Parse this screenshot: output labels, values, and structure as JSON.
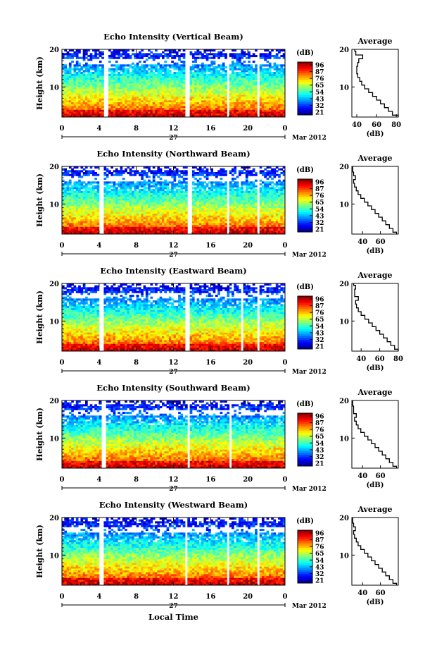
{
  "figure": {
    "xlabel": "Local Time",
    "date_label": "Mar 2012",
    "day_label": "27",
    "colorbar_unit": "(dB)",
    "colorbar_ticks": [
      "96",
      "87",
      "76",
      "65",
      "54",
      "43",
      "32",
      "21"
    ],
    "avg_title": "Average",
    "avg_xlabel": "(dB)",
    "x_ticks": [
      "0",
      "4",
      "8",
      "12",
      "16",
      "20",
      "0"
    ],
    "y_ticks": [
      "20",
      "10"
    ],
    "ylabel": "Height (km)"
  },
  "chart_data": [
    {
      "type": "heatmap",
      "title": "Echo Intensity (Vertical Beam)",
      "xlabel": "",
      "ylabel": "Height (km)",
      "xlim": [
        0,
        24
      ],
      "ylim": [
        2,
        20
      ],
      "colorbar_ticks": [
        96,
        87,
        76,
        65,
        54,
        43,
        32,
        21
      ],
      "colorbar_ticks_text": [
        "96",
        "87",
        "76",
        "65",
        "54",
        "43",
        "32",
        "21"
      ],
      "gaps_hours": [
        [
          4.6,
          5.1
        ],
        [
          13.3,
          13.8
        ],
        [
          17.8,
          18.0
        ],
        [
          21.0,
          21.2
        ],
        [
          23.4,
          23.6
        ]
      ],
      "average": {
        "x_ticks": [
          "40",
          "60",
          "80"
        ],
        "xlim": [
          35,
          82
        ],
        "heights": [
          2,
          3,
          4,
          5,
          6,
          7,
          8,
          9,
          10,
          11,
          12,
          13,
          14,
          15,
          16,
          17,
          18,
          19,
          20
        ],
        "values": [
          82,
          76,
          72,
          68,
          64,
          60,
          56,
          52,
          48,
          45,
          43,
          41,
          40,
          40,
          41,
          42,
          46,
          39,
          38
        ]
      }
    },
    {
      "type": "heatmap",
      "title": "Echo Intensity (Northward Beam)",
      "xlabel": "",
      "ylabel": "Height (km)",
      "xlim": [
        0,
        24
      ],
      "ylim": [
        2,
        20
      ],
      "colorbar_ticks": [
        96,
        87,
        76,
        65,
        54,
        43,
        32,
        21
      ],
      "colorbar_ticks_text": [
        "96",
        "87",
        "76",
        "65",
        "54",
        "43",
        "32",
        "21"
      ],
      "gaps_hours": [
        [
          4.0,
          4.5
        ],
        [
          13.5,
          14.0
        ],
        [
          17.8,
          18.0
        ],
        [
          21.0,
          21.2
        ]
      ],
      "average": {
        "x_ticks": [
          "40",
          "60"
        ],
        "xlim": [
          28,
          80
        ],
        "heights": [
          2,
          3,
          4,
          5,
          6,
          7,
          8,
          9,
          10,
          11,
          12,
          13,
          14,
          15,
          16,
          17,
          18,
          19,
          20
        ],
        "values": [
          78,
          74,
          70,
          66,
          62,
          58,
          54,
          50,
          46,
          42,
          38,
          35,
          33,
          31,
          30,
          32,
          30,
          29,
          29
        ]
      }
    },
    {
      "type": "heatmap",
      "title": "Echo Intensity (Eastward Beam)",
      "xlabel": "",
      "ylabel": "Height (km)",
      "xlim": [
        0,
        24
      ],
      "ylim": [
        2,
        20
      ],
      "colorbar_ticks": [
        96,
        87,
        76,
        65,
        54,
        43,
        32,
        21
      ],
      "colorbar_ticks_text": [
        "96",
        "87",
        "76",
        "65",
        "54",
        "43",
        "32",
        "21"
      ],
      "gaps_hours": [
        [
          4.0,
          4.5
        ],
        [
          13.3,
          13.7
        ],
        [
          19.2,
          19.4
        ],
        [
          21.0,
          21.2
        ]
      ],
      "average": {
        "x_ticks": [
          "40",
          "60",
          "80"
        ],
        "xlim": [
          30,
          80
        ],
        "heights": [
          2,
          3,
          4,
          5,
          6,
          7,
          8,
          9,
          10,
          11,
          12,
          13,
          14,
          15,
          16,
          17,
          18,
          19,
          20
        ],
        "values": [
          80,
          76,
          72,
          68,
          64,
          60,
          56,
          52,
          48,
          44,
          40,
          37,
          35,
          34,
          37,
          33,
          33,
          34,
          32
        ]
      }
    },
    {
      "type": "heatmap",
      "title": "Echo Intensity (Southward Beam)",
      "xlabel": "",
      "ylabel": "Height (km)",
      "xlim": [
        0,
        24
      ],
      "ylim": [
        2,
        20
      ],
      "colorbar_ticks": [
        96,
        87,
        76,
        65,
        54,
        43,
        32,
        21
      ],
      "colorbar_ticks_text": [
        "96",
        "87",
        "76",
        "65",
        "54",
        "43",
        "32",
        "21"
      ],
      "gaps_hours": [
        [
          4.3,
          4.7
        ],
        [
          13.4,
          13.8
        ],
        [
          18.0,
          18.2
        ]
      ],
      "average": {
        "x_ticks": [
          "40",
          "60"
        ],
        "xlim": [
          28,
          80
        ],
        "heights": [
          2,
          3,
          4,
          5,
          6,
          7,
          8,
          9,
          10,
          11,
          12,
          13,
          14,
          15,
          16,
          17,
          18,
          19,
          20
        ],
        "values": [
          78,
          74,
          70,
          66,
          62,
          58,
          54,
          50,
          46,
          42,
          38,
          35,
          33,
          31,
          33,
          30,
          30,
          29,
          29
        ]
      }
    },
    {
      "type": "heatmap",
      "title": "Echo Intensity (Westward Beam)",
      "xlabel": "Local Time",
      "ylabel": "Height (km)",
      "xlim": [
        0,
        24
      ],
      "ylim": [
        2,
        20
      ],
      "colorbar_ticks": [
        96,
        87,
        76,
        65,
        54,
        43,
        32,
        21
      ],
      "colorbar_ticks_text": [
        "96",
        "87",
        "76",
        "65",
        "54",
        "43",
        "32",
        "21"
      ],
      "gaps_hours": [
        [
          4.0,
          4.4
        ],
        [
          13.3,
          13.6
        ],
        [
          17.8,
          18.0
        ],
        [
          21.0,
          21.2
        ]
      ],
      "average": {
        "x_ticks": [
          "40",
          "60"
        ],
        "xlim": [
          28,
          80
        ],
        "heights": [
          2,
          3,
          4,
          5,
          6,
          7,
          8,
          9,
          10,
          11,
          12,
          13,
          14,
          15,
          16,
          17,
          18,
          19,
          20
        ],
        "values": [
          78,
          74,
          70,
          66,
          62,
          58,
          54,
          50,
          46,
          42,
          38,
          35,
          33,
          31,
          30,
          32,
          30,
          29,
          29
        ]
      }
    }
  ]
}
